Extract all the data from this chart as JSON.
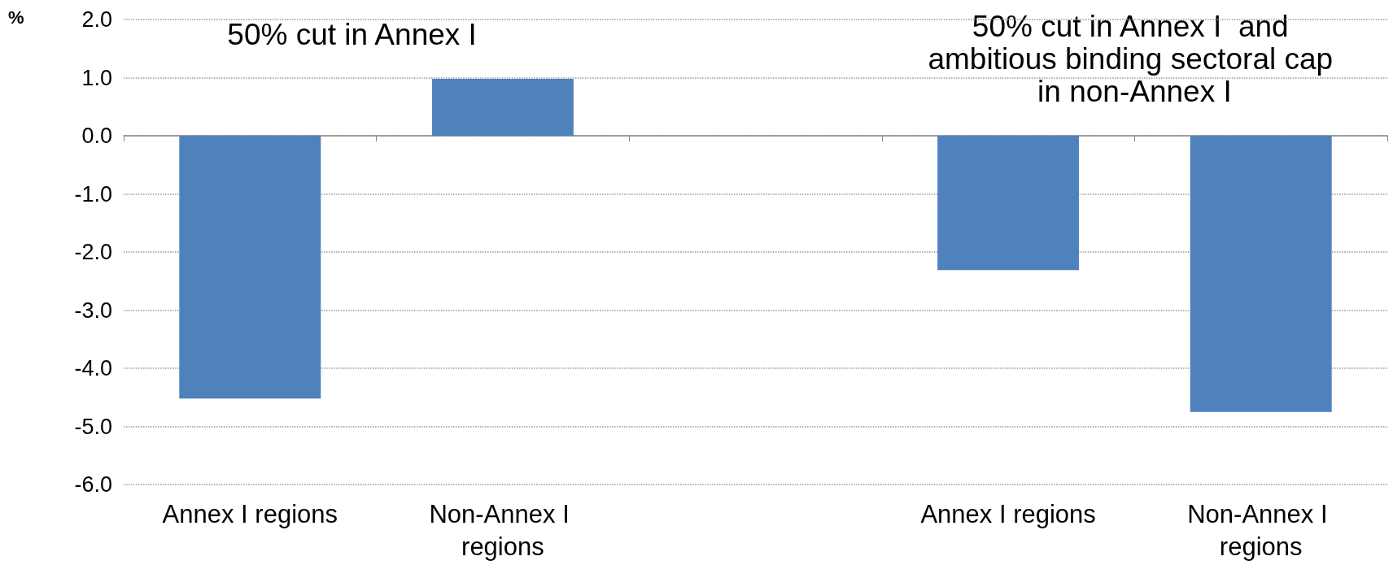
{
  "chart_data": {
    "type": "bar",
    "ylabel": "%",
    "categories": [
      "Annex I regions",
      "Non-Annex I regions",
      null,
      "Annex I regions",
      "Non-Annex I regions"
    ],
    "values": [
      -4.52,
      0.98,
      null,
      -2.31,
      -4.75
    ],
    "color": "#4f81bd",
    "ylim": [
      -6,
      2
    ],
    "yticks": [
      {
        "value": -6,
        "label": "-6.0"
      },
      {
        "value": -5,
        "label": "-5.0"
      },
      {
        "value": -4,
        "label": "-4.0"
      },
      {
        "value": -3,
        "label": "-3.0"
      },
      {
        "value": -2,
        "label": "-2.0"
      },
      {
        "value": -1,
        "label": "-1.0"
      },
      {
        "value": 0,
        "label": "0.0"
      },
      {
        "value": 1,
        "label": "1.0"
      },
      {
        "value": 2,
        "label": "2.0"
      }
    ],
    "grid": "y",
    "annotations": [
      "50% cut in Annex I",
      "50% cut in Annex I  and ambitious binding sectoral cap in non-Annex I"
    ]
  }
}
